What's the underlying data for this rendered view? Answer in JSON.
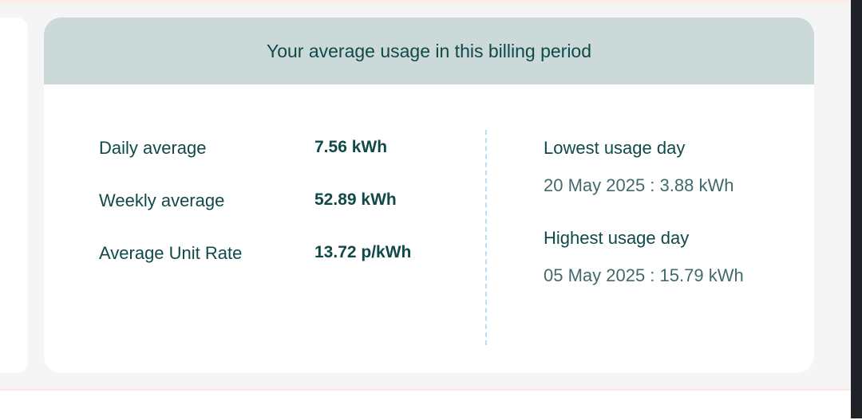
{
  "usage_card": {
    "title": "Your average usage in this billing period",
    "stats": [
      {
        "label": "Daily average",
        "value": "7.56 kWh"
      },
      {
        "label": "Weekly average",
        "value": "52.89 kWh"
      },
      {
        "label": "Average Unit Rate",
        "value": "13.72 p/kWh"
      }
    ],
    "lowest_day": {
      "title": "Lowest usage day",
      "value": "20 May 2025 : 3.88 kWh"
    },
    "highest_day": {
      "title": "Highest usage day",
      "value": "05 May 2025 : 15.79 kWh"
    }
  },
  "colors": {
    "header_bg": "#cbdad8",
    "text_primary": "#0f4a49",
    "text_secondary": "#436a6a",
    "divider": "#bfdcee",
    "page_bg": "#f5f5f5"
  }
}
